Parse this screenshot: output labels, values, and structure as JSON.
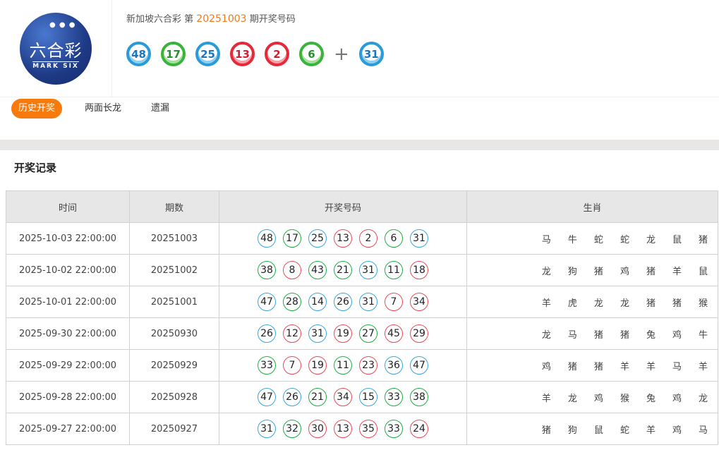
{
  "logo": {
    "cn": "六合彩",
    "en": "MARK SIX"
  },
  "header": {
    "prefix": "新加坡六合彩 第",
    "issue": "20251003",
    "suffix": "期开奖号码",
    "plus": "+",
    "balls": [
      {
        "n": "48",
        "c": "blue"
      },
      {
        "n": "17",
        "c": "green"
      },
      {
        "n": "25",
        "c": "blue"
      },
      {
        "n": "13",
        "c": "red"
      },
      {
        "n": "2",
        "c": "red"
      },
      {
        "n": "6",
        "c": "green"
      }
    ],
    "special": {
      "n": "31",
      "c": "blue"
    }
  },
  "tabs": [
    {
      "label": "历史开奖",
      "active": true
    },
    {
      "label": "两面长龙"
    },
    {
      "label": "遗漏"
    }
  ],
  "section_title": "开奖记录",
  "columns": [
    "时间",
    "期数",
    "开奖号码",
    "生肖"
  ],
  "rows": [
    {
      "time": "2025-10-03 22:00:00",
      "issue": "20251003",
      "nums": [
        "48",
        "17",
        "25",
        "13",
        "2",
        "6",
        "31"
      ],
      "colors": [
        "blue",
        "green",
        "blue",
        "red",
        "red",
        "green",
        "blue"
      ],
      "zodiac": [
        "马",
        "牛",
        "蛇",
        "蛇",
        "龙",
        "鼠",
        "猪"
      ]
    },
    {
      "time": "2025-10-02 22:00:00",
      "issue": "20251002",
      "nums": [
        "38",
        "8",
        "43",
        "21",
        "31",
        "11",
        "18"
      ],
      "colors": [
        "green",
        "red",
        "green",
        "green",
        "blue",
        "green",
        "red"
      ],
      "zodiac": [
        "龙",
        "狗",
        "猪",
        "鸡",
        "猪",
        "羊",
        "鼠"
      ]
    },
    {
      "time": "2025-10-01 22:00:00",
      "issue": "20251001",
      "nums": [
        "47",
        "28",
        "14",
        "26",
        "31",
        "7",
        "34"
      ],
      "colors": [
        "blue",
        "green",
        "blue",
        "blue",
        "blue",
        "red",
        "red"
      ],
      "zodiac": [
        "羊",
        "虎",
        "龙",
        "龙",
        "猪",
        "猪",
        "猴"
      ]
    },
    {
      "time": "2025-09-30 22:00:00",
      "issue": "20250930",
      "nums": [
        "26",
        "12",
        "31",
        "19",
        "27",
        "45",
        "29"
      ],
      "colors": [
        "blue",
        "red",
        "blue",
        "red",
        "green",
        "red",
        "red"
      ],
      "zodiac": [
        "龙",
        "马",
        "猪",
        "猪",
        "兔",
        "鸡",
        "牛"
      ]
    },
    {
      "time": "2025-09-29 22:00:00",
      "issue": "20250929",
      "nums": [
        "33",
        "7",
        "19",
        "11",
        "23",
        "36",
        "47"
      ],
      "colors": [
        "green",
        "red",
        "red",
        "green",
        "red",
        "blue",
        "blue"
      ],
      "zodiac": [
        "鸡",
        "猪",
        "猪",
        "羊",
        "羊",
        "马",
        "羊"
      ]
    },
    {
      "time": "2025-09-28 22:00:00",
      "issue": "20250928",
      "nums": [
        "47",
        "26",
        "21",
        "34",
        "15",
        "33",
        "38"
      ],
      "colors": [
        "blue",
        "blue",
        "green",
        "red",
        "blue",
        "green",
        "green"
      ],
      "zodiac": [
        "羊",
        "龙",
        "鸡",
        "猴",
        "兔",
        "鸡",
        "龙"
      ]
    },
    {
      "time": "2025-09-27 22:00:00",
      "issue": "20250927",
      "nums": [
        "31",
        "32",
        "30",
        "13",
        "35",
        "33",
        "24"
      ],
      "colors": [
        "blue",
        "green",
        "red",
        "red",
        "red",
        "green",
        "red"
      ],
      "zodiac": [
        "猪",
        "狗",
        "鼠",
        "蛇",
        "羊",
        "鸡",
        "马"
      ]
    }
  ]
}
